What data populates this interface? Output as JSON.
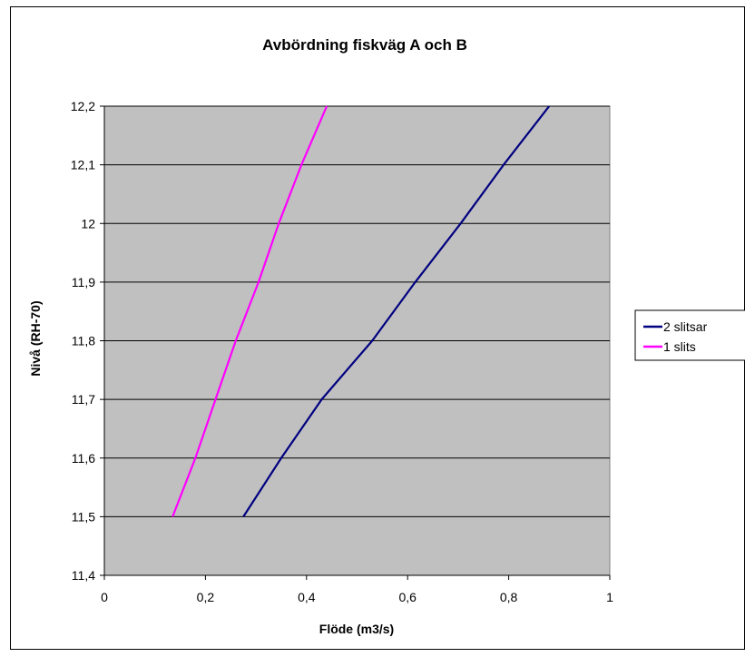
{
  "chart_data": {
    "type": "line",
    "title": "Avbördning fiskväg A och B",
    "xlabel": "Flöde (m3/s)",
    "ylabel": "Nivå (RH-70)",
    "xlim": [
      0,
      1
    ],
    "ylim": [
      11.4,
      12.2
    ],
    "x_ticks": [
      0,
      0.2,
      0.4,
      0.6,
      0.8,
      1
    ],
    "x_tick_labels": [
      "0",
      "0,2",
      "0,4",
      "0,6",
      "0,8",
      "1"
    ],
    "y_ticks": [
      11.4,
      11.5,
      11.6,
      11.7,
      11.8,
      11.9,
      12.0,
      12.1,
      12.2
    ],
    "y_tick_labels": [
      "11,4",
      "11,5",
      "11,6",
      "11,7",
      "11,8",
      "11,9",
      "12",
      "12,1",
      "12,2"
    ],
    "grid": "horizontal",
    "plot_background": "#c0c0c0",
    "legend_position": "right",
    "series": [
      {
        "name": "2 slitsar",
        "color": "#000080",
        "points": [
          [
            0.275,
            11.5
          ],
          [
            0.35,
            11.6
          ],
          [
            0.43,
            11.7
          ],
          [
            0.53,
            11.8
          ],
          [
            0.615,
            11.9
          ],
          [
            0.705,
            12.0
          ],
          [
            0.79,
            12.1
          ],
          [
            0.88,
            12.2
          ]
        ]
      },
      {
        "name": "1 slits",
        "color": "#ff00ff",
        "points": [
          [
            0.135,
            11.5
          ],
          [
            0.18,
            11.6
          ],
          [
            0.22,
            11.7
          ],
          [
            0.26,
            11.8
          ],
          [
            0.305,
            11.9
          ],
          [
            0.345,
            12.0
          ],
          [
            0.39,
            12.1
          ],
          [
            0.44,
            12.2
          ]
        ]
      }
    ]
  }
}
